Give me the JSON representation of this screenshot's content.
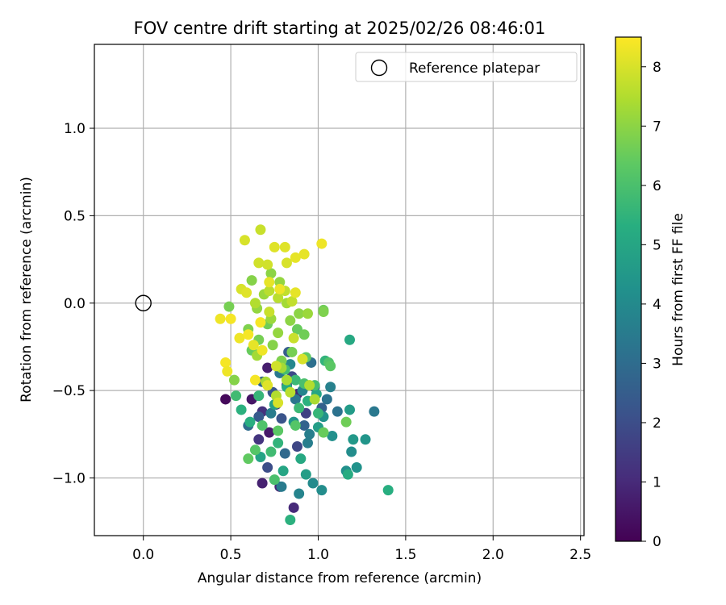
{
  "chart_data": {
    "type": "scatter",
    "title": "FOV centre drift starting at 2025/02/26 08:46:01",
    "xlabel": "Angular distance from reference (arcmin)",
    "ylabel": "Rotation from reference (arcmin)",
    "xlim": [
      -0.28,
      2.52
    ],
    "ylim": [
      -1.33,
      1.48
    ],
    "xticks": [
      "0.0",
      "0.5",
      "1.0",
      "1.5",
      "2.0",
      "2.5"
    ],
    "xtick_values": [
      0,
      0.5,
      1.0,
      1.5,
      2.0,
      2.5
    ],
    "yticks": [
      "−1.0",
      "−0.5",
      "0.0",
      "0.5",
      "1.0"
    ],
    "ytick_values": [
      -1.0,
      -0.5,
      0.0,
      0.5,
      1.0
    ],
    "grid": true,
    "legend": {
      "placement": "top-right",
      "label": "Reference platepar",
      "marker": "open-circle"
    },
    "reference_point": {
      "x": 0.0,
      "y": 0.0
    },
    "colorbar": {
      "label": "Hours from first FF file",
      "range": [
        0,
        8.5
      ],
      "ticks": [
        "0",
        "1",
        "2",
        "3",
        "4",
        "5",
        "6",
        "7",
        "8"
      ],
      "tick_values": [
        0,
        1,
        2,
        3,
        4,
        5,
        6,
        7,
        8
      ],
      "colormap": "viridis"
    },
    "points": [
      {
        "x": 0.47,
        "y": -0.55,
        "h": 0.2
      },
      {
        "x": 0.68,
        "y": -1.03,
        "h": 0.8
      },
      {
        "x": 0.86,
        "y": -1.17,
        "h": 1.0
      },
      {
        "x": 0.72,
        "y": -0.74,
        "h": 0.6
      },
      {
        "x": 0.66,
        "y": -0.78,
        "h": 1.3
      },
      {
        "x": 0.62,
        "y": -0.55,
        "h": 0.5
      },
      {
        "x": 0.78,
        "y": -1.05,
        "h": 0.9
      },
      {
        "x": 0.71,
        "y": -0.37,
        "h": 0.7
      },
      {
        "x": 0.82,
        "y": -0.47,
        "h": 1.1
      },
      {
        "x": 0.76,
        "y": -0.58,
        "h": 1.4
      },
      {
        "x": 0.88,
        "y": -0.52,
        "h": 0.9
      },
      {
        "x": 0.68,
        "y": -0.62,
        "h": 1.2
      },
      {
        "x": 0.93,
        "y": -0.63,
        "h": 1.6
      },
      {
        "x": 0.71,
        "y": -0.94,
        "h": 2.0
      },
      {
        "x": 0.88,
        "y": -0.82,
        "h": 1.8
      },
      {
        "x": 0.85,
        "y": -0.42,
        "h": 1.9
      },
      {
        "x": 0.79,
        "y": -0.66,
        "h": 2.2
      },
      {
        "x": 0.66,
        "y": -0.65,
        "h": 2.4
      },
      {
        "x": 0.98,
        "y": -0.48,
        "h": 2.1
      },
      {
        "x": 0.83,
        "y": -0.28,
        "h": 2.5
      },
      {
        "x": 0.74,
        "y": -0.51,
        "h": 2.3
      },
      {
        "x": 1.02,
        "y": -0.6,
        "h": 2.6
      },
      {
        "x": 0.92,
        "y": -0.7,
        "h": 2.7
      },
      {
        "x": 0.81,
        "y": -0.86,
        "h": 2.9
      },
      {
        "x": 0.68,
        "y": -0.45,
        "h": 2.8
      },
      {
        "x": 0.6,
        "y": -0.7,
        "h": 3.0
      },
      {
        "x": 0.96,
        "y": -0.34,
        "h": 3.1
      },
      {
        "x": 1.05,
        "y": -0.55,
        "h": 3.2
      },
      {
        "x": 0.87,
        "y": -0.55,
        "h": 3.3
      },
      {
        "x": 0.78,
        "y": -0.4,
        "h": 3.4
      },
      {
        "x": 0.73,
        "y": -0.63,
        "h": 3.5
      },
      {
        "x": 0.95,
        "y": -0.75,
        "h": 3.6
      },
      {
        "x": 1.11,
        "y": -0.62,
        "h": 3.2
      },
      {
        "x": 1.32,
        "y": -0.62,
        "h": 3.4
      },
      {
        "x": 1.07,
        "y": -0.48,
        "h": 3.7
      },
      {
        "x": 0.91,
        "y": -0.5,
        "h": 3.8
      },
      {
        "x": 0.84,
        "y": -0.35,
        "h": 3.9
      },
      {
        "x": 0.79,
        "y": -1.05,
        "h": 3.5
      },
      {
        "x": 0.94,
        "y": -0.8,
        "h": 3.6
      },
      {
        "x": 0.97,
        "y": -1.03,
        "h": 4.0
      },
      {
        "x": 1.02,
        "y": -1.07,
        "h": 4.1
      },
      {
        "x": 0.89,
        "y": -1.09,
        "h": 3.8
      },
      {
        "x": 1.16,
        "y": -0.96,
        "h": 4.2
      },
      {
        "x": 1.22,
        "y": -0.94,
        "h": 4.3
      },
      {
        "x": 1.19,
        "y": -0.85,
        "h": 4.1
      },
      {
        "x": 1.27,
        "y": -0.78,
        "h": 4.4
      },
      {
        "x": 1.2,
        "y": -0.78,
        "h": 4.5
      },
      {
        "x": 1.18,
        "y": -0.61,
        "h": 4.6
      },
      {
        "x": 1.08,
        "y": -0.76,
        "h": 4.2
      },
      {
        "x": 1.03,
        "y": -0.65,
        "h": 4.3
      },
      {
        "x": 1.0,
        "y": -0.71,
        "h": 4.7
      },
      {
        "x": 0.86,
        "y": -0.68,
        "h": 4.4
      },
      {
        "x": 0.75,
        "y": -0.58,
        "h": 4.8
      },
      {
        "x": 0.67,
        "y": -0.88,
        "h": 4.9
      },
      {
        "x": 0.8,
        "y": -0.96,
        "h": 5.0
      },
      {
        "x": 0.93,
        "y": -0.98,
        "h": 4.7
      },
      {
        "x": 0.9,
        "y": -0.89,
        "h": 5.1
      },
      {
        "x": 0.84,
        "y": -1.24,
        "h": 5.4
      },
      {
        "x": 1.4,
        "y": -1.07,
        "h": 5.3
      },
      {
        "x": 1.17,
        "y": -0.98,
        "h": 5.2
      },
      {
        "x": 1.18,
        "y": -0.21,
        "h": 5.1
      },
      {
        "x": 1.04,
        "y": -0.33,
        "h": 5.5
      },
      {
        "x": 0.99,
        "y": -0.52,
        "h": 5.0
      },
      {
        "x": 1.0,
        "y": -0.63,
        "h": 5.6
      },
      {
        "x": 0.94,
        "y": -0.56,
        "h": 5.4
      },
      {
        "x": 0.89,
        "y": -0.6,
        "h": 5.7
      },
      {
        "x": 0.82,
        "y": -0.48,
        "h": 5.2
      },
      {
        "x": 0.77,
        "y": -0.8,
        "h": 5.5
      },
      {
        "x": 0.73,
        "y": -0.85,
        "h": 5.8
      },
      {
        "x": 0.66,
        "y": -0.53,
        "h": 5.6
      },
      {
        "x": 0.61,
        "y": -0.68,
        "h": 5.3
      },
      {
        "x": 0.56,
        "y": -0.61,
        "h": 5.4
      },
      {
        "x": 0.53,
        "y": -0.53,
        "h": 5.8
      },
      {
        "x": 0.81,
        "y": -0.38,
        "h": 5.9
      },
      {
        "x": 0.87,
        "y": -0.44,
        "h": 5.7
      },
      {
        "x": 0.92,
        "y": -0.46,
        "h": 6.0
      },
      {
        "x": 0.98,
        "y": -0.47,
        "h": 5.9
      },
      {
        "x": 1.06,
        "y": -0.34,
        "h": 6.1
      },
      {
        "x": 1.07,
        "y": -0.36,
        "h": 6.3
      },
      {
        "x": 0.75,
        "y": -1.01,
        "h": 6.0
      },
      {
        "x": 0.64,
        "y": -0.84,
        "h": 6.2
      },
      {
        "x": 0.6,
        "y": -0.89,
        "h": 6.4
      },
      {
        "x": 0.68,
        "y": -0.7,
        "h": 6.1
      },
      {
        "x": 0.77,
        "y": -0.73,
        "h": 6.3
      },
      {
        "x": 0.87,
        "y": -0.7,
        "h": 6.2
      },
      {
        "x": 1.03,
        "y": -0.74,
        "h": 6.5
      },
      {
        "x": 1.16,
        "y": -0.68,
        "h": 6.6
      },
      {
        "x": 0.93,
        "y": -0.31,
        "h": 6.4
      },
      {
        "x": 0.88,
        "y": -0.15,
        "h": 6.5
      },
      {
        "x": 0.92,
        "y": -0.18,
        "h": 6.6
      },
      {
        "x": 0.85,
        "y": -0.28,
        "h": 6.7
      },
      {
        "x": 0.79,
        "y": -0.33,
        "h": 6.8
      },
      {
        "x": 0.74,
        "y": -0.24,
        "h": 6.9
      },
      {
        "x": 0.71,
        "y": -0.12,
        "h": 6.6
      },
      {
        "x": 0.66,
        "y": -0.21,
        "h": 6.7
      },
      {
        "x": 0.62,
        "y": -0.27,
        "h": 6.5
      },
      {
        "x": 0.6,
        "y": -0.15,
        "h": 6.8
      },
      {
        "x": 0.52,
        "y": -0.44,
        "h": 6.9
      },
      {
        "x": 0.49,
        "y": -0.02,
        "h": 6.7
      },
      {
        "x": 1.03,
        "y": -0.04,
        "h": 6.6
      },
      {
        "x": 1.03,
        "y": -0.05,
        "h": 6.8
      },
      {
        "x": 0.89,
        "y": -0.06,
        "h": 7.0
      },
      {
        "x": 0.84,
        "y": -0.1,
        "h": 7.0
      },
      {
        "x": 0.77,
        "y": -0.17,
        "h": 7.1
      },
      {
        "x": 0.73,
        "y": -0.09,
        "h": 7.2
      },
      {
        "x": 0.65,
        "y": -0.03,
        "h": 7.1
      },
      {
        "x": 0.62,
        "y": 0.13,
        "h": 6.9
      },
      {
        "x": 0.73,
        "y": 0.17,
        "h": 7.0
      },
      {
        "x": 0.78,
        "y": 0.12,
        "h": 7.1
      },
      {
        "x": 0.69,
        "y": 0.05,
        "h": 7.2
      },
      {
        "x": 0.82,
        "y": 0.0,
        "h": 7.3
      },
      {
        "x": 0.94,
        "y": -0.06,
        "h": 7.2
      },
      {
        "x": 0.79,
        "y": -0.37,
        "h": 7.3
      },
      {
        "x": 0.82,
        "y": -0.44,
        "h": 7.4
      },
      {
        "x": 0.76,
        "y": -0.53,
        "h": 7.5
      },
      {
        "x": 0.7,
        "y": -0.45,
        "h": 7.4
      },
      {
        "x": 0.65,
        "y": -0.3,
        "h": 7.3
      },
      {
        "x": 0.95,
        "y": -0.47,
        "h": 7.5
      },
      {
        "x": 0.98,
        "y": -0.55,
        "h": 7.4
      },
      {
        "x": 0.84,
        "y": -0.51,
        "h": 7.6
      },
      {
        "x": 0.64,
        "y": 0.0,
        "h": 7.5
      },
      {
        "x": 0.72,
        "y": 0.07,
        "h": 7.6
      },
      {
        "x": 0.77,
        "y": 0.03,
        "h": 7.6
      },
      {
        "x": 0.81,
        "y": 0.07,
        "h": 7.7
      },
      {
        "x": 0.85,
        "y": 0.01,
        "h": 7.7
      },
      {
        "x": 0.72,
        "y": -0.05,
        "h": 7.8
      },
      {
        "x": 0.67,
        "y": 0.42,
        "h": 7.8
      },
      {
        "x": 0.66,
        "y": 0.23,
        "h": 7.9
      },
      {
        "x": 0.71,
        "y": 0.22,
        "h": 7.9
      },
      {
        "x": 0.58,
        "y": 0.36,
        "h": 8.0
      },
      {
        "x": 0.82,
        "y": 0.23,
        "h": 8.0
      },
      {
        "x": 0.75,
        "y": 0.32,
        "h": 8.1
      },
      {
        "x": 0.81,
        "y": 0.32,
        "h": 8.1
      },
      {
        "x": 0.87,
        "y": 0.26,
        "h": 8.2
      },
      {
        "x": 0.92,
        "y": 0.28,
        "h": 8.2
      },
      {
        "x": 1.02,
        "y": 0.34,
        "h": 8.3
      },
      {
        "x": 0.56,
        "y": 0.08,
        "h": 8.0
      },
      {
        "x": 0.59,
        "y": 0.06,
        "h": 8.1
      },
      {
        "x": 0.72,
        "y": 0.12,
        "h": 8.2
      },
      {
        "x": 0.78,
        "y": 0.08,
        "h": 8.3
      },
      {
        "x": 0.87,
        "y": 0.06,
        "h": 8.2
      },
      {
        "x": 0.44,
        "y": -0.09,
        "h": 8.3
      },
      {
        "x": 0.5,
        "y": -0.09,
        "h": 8.4
      },
      {
        "x": 0.67,
        "y": -0.11,
        "h": 8.4
      },
      {
        "x": 0.55,
        "y": -0.2,
        "h": 8.3
      },
      {
        "x": 0.6,
        "y": -0.18,
        "h": 8.4
      },
      {
        "x": 0.47,
        "y": -0.34,
        "h": 8.4
      },
      {
        "x": 0.48,
        "y": -0.39,
        "h": 8.3
      },
      {
        "x": 0.63,
        "y": -0.24,
        "h": 8.2
      },
      {
        "x": 0.68,
        "y": -0.27,
        "h": 8.3
      },
      {
        "x": 0.64,
        "y": -0.44,
        "h": 8.4
      },
      {
        "x": 0.71,
        "y": -0.47,
        "h": 8.1
      },
      {
        "x": 0.77,
        "y": -0.57,
        "h": 8.0
      },
      {
        "x": 0.76,
        "y": -0.36,
        "h": 7.9
      },
      {
        "x": 0.91,
        "y": -0.32,
        "h": 8.0
      },
      {
        "x": 0.86,
        "y": -0.2,
        "h": 7.8
      }
    ]
  }
}
